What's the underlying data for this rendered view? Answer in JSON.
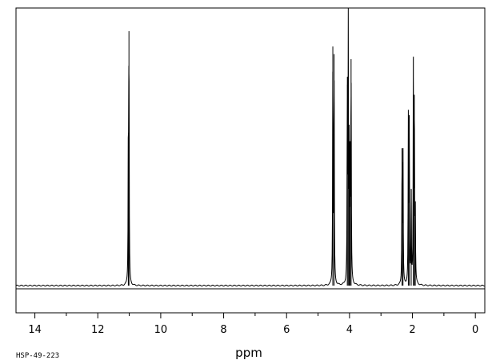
{
  "chart_data": {
    "type": "line",
    "title": "",
    "xlabel": "ppm",
    "ylabel": "",
    "sample_id": "HSP-49-223",
    "x_reversed": true,
    "xlim": [
      14.6,
      -0.3
    ],
    "ylim": [
      0,
      1.05
    ],
    "grid": false,
    "legend": "none",
    "baseline": 0,
    "major_ticks": [
      14,
      12,
      10,
      8,
      6,
      4,
      2,
      0
    ],
    "tick_labels": [
      "14",
      "12",
      "10",
      "8",
      "6",
      "4",
      "2",
      "0"
    ],
    "minor_ticks": [
      13,
      11,
      9,
      7,
      5,
      3,
      1
    ],
    "peaks": [
      {
        "ppm": 11.03,
        "height": 0.56
      },
      {
        "ppm": 11.01,
        "height": 1.0
      },
      {
        "ppm": 4.53,
        "height": 0.94
      },
      {
        "ppm": 4.49,
        "height": 0.91
      },
      {
        "ppm": 4.07,
        "height": 0.79
      },
      {
        "ppm": 4.04,
        "height": 0.99
      },
      {
        "ppm": 4.01,
        "height": 0.52
      },
      {
        "ppm": 3.98,
        "height": 0.55
      },
      {
        "ppm": 3.95,
        "height": 0.89
      },
      {
        "ppm": 2.33,
        "height": 0.54
      },
      {
        "ppm": 2.3,
        "height": 0.53
      },
      {
        "ppm": 2.13,
        "height": 0.64
      },
      {
        "ppm": 2.1,
        "height": 0.67
      },
      {
        "ppm": 2.04,
        "height": 0.38
      },
      {
        "ppm": 1.97,
        "height": 0.9
      },
      {
        "ppm": 1.94,
        "height": 0.75
      },
      {
        "ppm": 1.91,
        "height": 0.31
      }
    ],
    "line_color": "#000000"
  }
}
